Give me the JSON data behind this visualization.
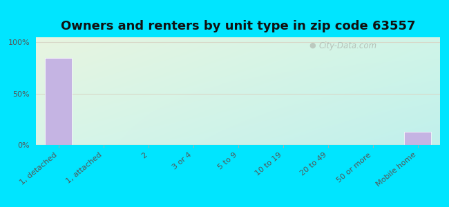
{
  "title": "Owners and renters by unit type in zip code 63557",
  "categories": [
    "1, detached",
    "1, attached",
    "2",
    "3 or 4",
    "5 to 9",
    "10 to 19",
    "20 to 49",
    "50 or more",
    "Mobile home"
  ],
  "values": [
    85,
    0,
    0,
    0,
    0,
    0,
    0,
    0,
    13
  ],
  "bar_color": "#c5b4e3",
  "bar_edge_color": "#ffffff",
  "yticks": [
    0,
    50,
    100
  ],
  "ytick_labels": [
    "0%",
    "50%",
    "100%"
  ],
  "ylim": [
    0,
    105
  ],
  "grid_color": "#d8d8c8",
  "background_color_outer": "#00e5ff",
  "background_gradient_topleft": "#e8f5e0",
  "background_gradient_bottomright": "#c8f0ec",
  "title_fontsize": 13,
  "tick_fontsize": 8.0,
  "watermark_text": "City-Data.com",
  "watermark_color": "#b0b8b0"
}
